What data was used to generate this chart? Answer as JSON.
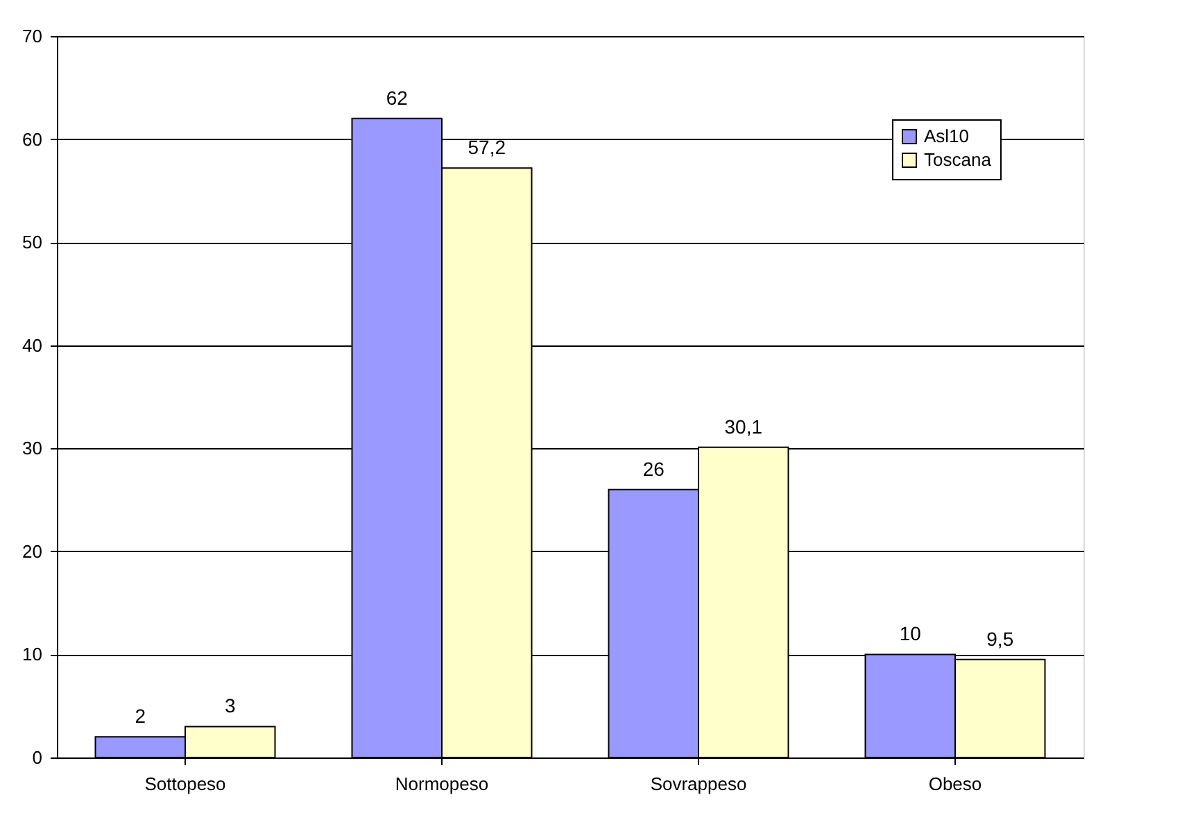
{
  "chart_data": {
    "type": "bar",
    "categories": [
      "Sottopeso",
      "Normopeso",
      "Sovrappeso",
      "Obeso"
    ],
    "series": [
      {
        "name": "Asl10",
        "color": "#9999ff",
        "values": [
          2,
          62,
          26,
          10
        ],
        "value_labels": [
          "2",
          "62",
          "26",
          "10"
        ]
      },
      {
        "name": "Toscana",
        "color": "#ffffcc",
        "values": [
          3,
          57.2,
          30.1,
          9.5
        ],
        "value_labels": [
          "3",
          "57,2",
          "30,1",
          "9,5"
        ]
      }
    ],
    "ylim": [
      0,
      70
    ],
    "yticks": [
      0,
      10,
      20,
      30,
      40,
      50,
      60,
      70
    ],
    "grid": "y",
    "legend": "top right"
  }
}
